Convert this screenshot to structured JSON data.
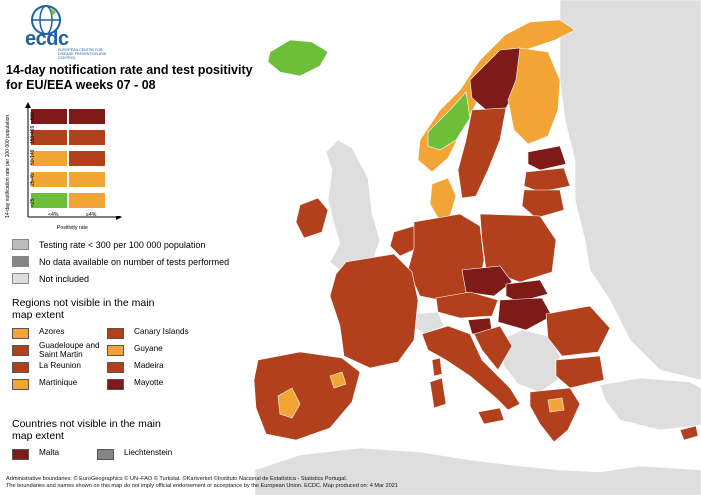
{
  "logo": {
    "text": "ecdc",
    "subtitle": "EUROPEAN CENTRE FOR DISEASE PREVENTION AND CONTROL"
  },
  "title": "14-day notification rate and test positivity for EU/EEA weeks 07 - 08",
  "colors": {
    "sea": "#ffffff",
    "dark_red": "#7e1a17",
    "red": "#b3401d",
    "orange": "#f2a535",
    "green": "#6dbf3a",
    "grey_low_testing": "#bcbcbc",
    "grey_no_data": "#858585",
    "not_included": "#dedede"
  },
  "matrix": {
    "y_axis_title": "14-day notification rate per 100 000 population",
    "x_axis_title": "Positivity rate",
    "rate_bands": [
      "≥500",
      "150-499",
      "50-149",
      "25-49",
      "<25"
    ],
    "positivity_bands": [
      "<4%",
      "≥4%"
    ],
    "cells": [
      [
        "dark_red",
        "dark_red"
      ],
      [
        "red",
        "red"
      ],
      [
        "orange",
        "red"
      ],
      [
        "orange",
        "orange"
      ],
      [
        "green",
        "orange"
      ]
    ]
  },
  "legend": [
    {
      "label": "Testing rate < 300 per 100 000 population",
      "color": "grey_low_testing"
    },
    {
      "label": "No data available on number of tests performed",
      "color": "grey_no_data"
    },
    {
      "label": "Not included",
      "color": "not_included"
    }
  ],
  "regions_title": "Regions not visible in the main map extent",
  "regions": [
    {
      "label": "Azores",
      "color": "orange"
    },
    {
      "label": "Canary Islands",
      "color": "red"
    },
    {
      "label": "Guadeloupe and Saint Martin",
      "color": "red"
    },
    {
      "label": "Guyane",
      "color": "orange"
    },
    {
      "label": "La Reunion",
      "color": "red"
    },
    {
      "label": "Madeira",
      "color": "red"
    },
    {
      "label": "Martinique",
      "color": "orange"
    },
    {
      "label": "Mayotte",
      "color": "dark_red"
    }
  ],
  "countries_title": "Countries not visible in the main map extent",
  "countries": [
    {
      "label": "Malta",
      "color": "dark_red"
    },
    {
      "label": "Liechtenstein",
      "color": "grey_no_data"
    }
  ],
  "footer": [
    "Administrative boundaries: © EuroGeographics © UN–FAO © Turkstat. ©Kartverket ©Instituto Nacional de Estatística - Statistics Portugal.",
    "The boundaries and names shown on this map do not imply official endorsement or acceptance by the European Union. ECDC. Map produced on: 4 Mar 2021"
  ],
  "map_regions": [
    {
      "name": "iceland",
      "color": "green"
    },
    {
      "name": "norway-coast",
      "color": "orange"
    },
    {
      "name": "norway-south",
      "color": "green"
    },
    {
      "name": "sweden-north",
      "color": "dark_red"
    },
    {
      "name": "sweden-south",
      "color": "red"
    },
    {
      "name": "finland",
      "color": "orange"
    },
    {
      "name": "estonia",
      "color": "dark_red"
    },
    {
      "name": "latvia",
      "color": "red"
    },
    {
      "name": "lithuania",
      "color": "red"
    },
    {
      "name": "denmark",
      "color": "orange"
    },
    {
      "name": "ireland",
      "color": "red"
    },
    {
      "name": "poland",
      "color": "red"
    },
    {
      "name": "germany",
      "color": "red"
    },
    {
      "name": "netherlands",
      "color": "red"
    },
    {
      "name": "czechia",
      "color": "dark_red"
    },
    {
      "name": "slovakia",
      "color": "dark_red"
    },
    {
      "name": "hungary",
      "color": "dark_red"
    },
    {
      "name": "austria",
      "color": "red"
    },
    {
      "name": "switzerland",
      "color": "not_included"
    },
    {
      "name": "france",
      "color": "red"
    },
    {
      "name": "iberia",
      "color": "red"
    },
    {
      "name": "portugal-orange",
      "color": "orange"
    },
    {
      "name": "spain-orange",
      "color": "orange"
    },
    {
      "name": "italy",
      "color": "red"
    },
    {
      "name": "slovenia",
      "color": "dark_red"
    },
    {
      "name": "croatia",
      "color": "red"
    },
    {
      "name": "romania",
      "color": "red"
    },
    {
      "name": "bulgaria",
      "color": "red"
    },
    {
      "name": "greece",
      "color": "red"
    },
    {
      "name": "greece-orange",
      "color": "orange"
    },
    {
      "name": "cyprus",
      "color": "red"
    },
    {
      "name": "sardinia",
      "color": "red"
    },
    {
      "name": "corsica",
      "color": "red"
    },
    {
      "name": "sicily",
      "color": "red"
    },
    {
      "name": "uk",
      "color": "not_included"
    },
    {
      "name": "balkans",
      "color": "not_included"
    },
    {
      "name": "eastern-europe",
      "color": "not_included"
    },
    {
      "name": "turkey",
      "color": "not_included"
    },
    {
      "name": "north-africa",
      "color": "not_included"
    }
  ]
}
